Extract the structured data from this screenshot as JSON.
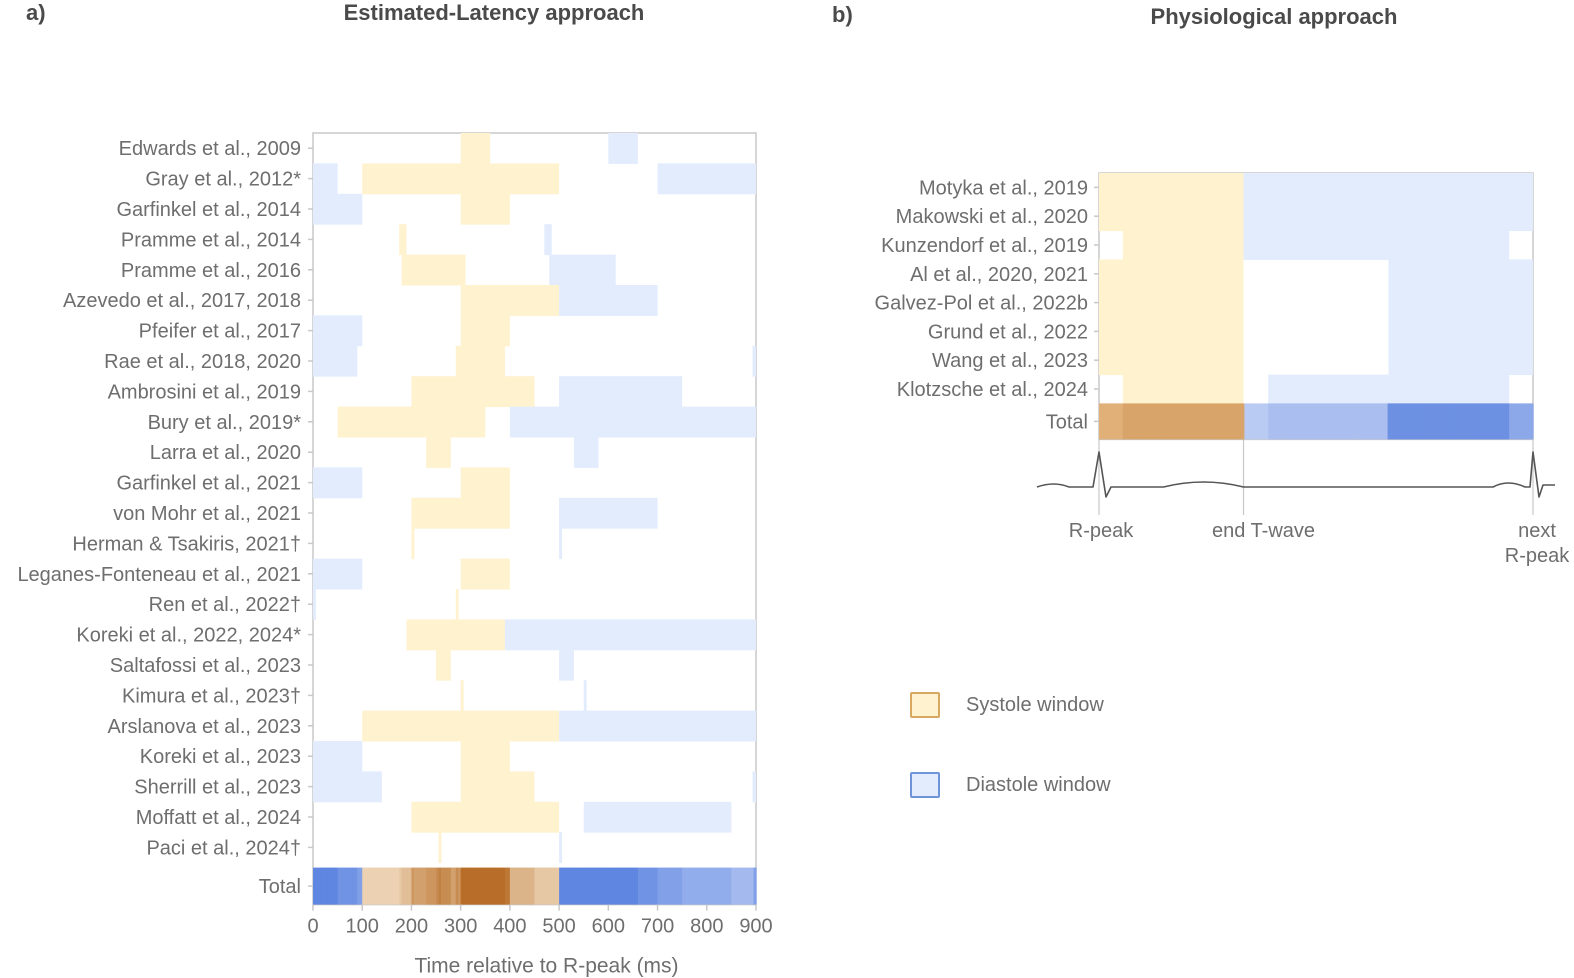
{
  "panels": {
    "a": {
      "letter": "a)",
      "title": "Estimated-Latency approach"
    },
    "b": {
      "letter": "b)",
      "title": "Physiological approach"
    }
  },
  "colors": {
    "systole": "#fff2cf",
    "diastole": "#e3ecfd",
    "systole_border": "#d9a860",
    "diastole_border": "#6f94d8",
    "axis": "#c8c8c8",
    "text": "#6e6e6e"
  },
  "legend": {
    "items": [
      {
        "label": "Systole window",
        "kind": "systole"
      },
      {
        "label": "Diastole window",
        "kind": "diastole"
      }
    ]
  },
  "chart_data": [
    {
      "type": "heatmap",
      "title": "Estimated-Latency approach",
      "xlabel": "Time relative to R-peak (ms)",
      "ylabel": "",
      "xlim": [
        0,
        900
      ],
      "xticks": [
        0,
        100,
        200,
        300,
        400,
        500,
        600,
        700,
        800,
        900
      ],
      "grid": false,
      "rows": [
        {
          "label": "Edwards et al., 2009",
          "systole": [
            [
              300,
              360
            ]
          ],
          "diastole": [
            [
              600,
              660
            ]
          ]
        },
        {
          "label": "Gray et al., 2012*",
          "systole": [
            [
              100,
              500
            ]
          ],
          "diastole": [
            [
              0,
              50
            ],
            [
              700,
              900
            ]
          ]
        },
        {
          "label": "Garfinkel et al., 2014",
          "systole": [
            [
              300,
              400
            ]
          ],
          "diastole": [
            [
              0,
              100
            ]
          ]
        },
        {
          "label": "Pramme et al., 2014",
          "systole": [
            [
              175,
              190
            ]
          ],
          "diastole": [
            [
              470,
              485
            ]
          ]
        },
        {
          "label": "Pramme et al., 2016",
          "systole": [
            [
              180,
              310
            ]
          ],
          "diastole": [
            [
              480,
              615
            ]
          ]
        },
        {
          "label": "Azevedo et al., 2017, 2018",
          "systole": [
            [
              300,
              500
            ]
          ],
          "diastole": [
            [
              500,
              700
            ]
          ]
        },
        {
          "label": "Pfeifer et al., 2017",
          "systole": [
            [
              300,
              400
            ]
          ],
          "diastole": [
            [
              0,
              100
            ]
          ]
        },
        {
          "label": "Rae et al., 2018, 2020",
          "systole": [
            [
              290,
              390
            ]
          ],
          "diastole": [
            [
              0,
              90
            ],
            [
              893,
              900
            ]
          ]
        },
        {
          "label": "Ambrosini et al., 2019",
          "systole": [
            [
              200,
              450
            ]
          ],
          "diastole": [
            [
              500,
              750
            ]
          ]
        },
        {
          "label": "Bury et al., 2019*",
          "systole": [
            [
              50,
              350
            ]
          ],
          "diastole": [
            [
              400,
              900
            ]
          ]
        },
        {
          "label": "Larra et al., 2020",
          "systole": [
            [
              230,
              280
            ]
          ],
          "diastole": [
            [
              530,
              580
            ]
          ]
        },
        {
          "label": "Garfinkel et al., 2021",
          "systole": [
            [
              300,
              400
            ]
          ],
          "diastole": [
            [
              0,
              100
            ]
          ]
        },
        {
          "label": "von Mohr et al., 2021",
          "systole": [
            [
              200,
              400
            ]
          ],
          "diastole": [
            [
              500,
              700
            ]
          ]
        },
        {
          "label": "Herman & Tsakiris, 2021†",
          "systole": [
            [
              200,
              206
            ]
          ],
          "diastole": [
            [
              500,
              506
            ]
          ]
        },
        {
          "label": "Leganes-Fonteneau et al., 2021",
          "systole": [
            [
              300,
              400
            ]
          ],
          "diastole": [
            [
              0,
              100
            ]
          ]
        },
        {
          "label": "Ren et al., 2022†",
          "systole": [
            [
              290,
              296
            ]
          ],
          "diastole": [
            [
              0,
              6
            ]
          ]
        },
        {
          "label": "Koreki et al., 2022, 2024*",
          "systole": [
            [
              190,
              390
            ]
          ],
          "diastole": [
            [
              390,
              900
            ]
          ]
        },
        {
          "label": "Saltafossi et al., 2023",
          "systole": [
            [
              250,
              280
            ]
          ],
          "diastole": [
            [
              500,
              530
            ]
          ]
        },
        {
          "label": "Kimura et al., 2023†",
          "systole": [
            [
              300,
              306
            ]
          ],
          "diastole": [
            [
              550,
              556
            ]
          ]
        },
        {
          "label": "Arslanova et al., 2023",
          "systole": [
            [
              100,
              500
            ]
          ],
          "diastole": [
            [
              500,
              900
            ]
          ]
        },
        {
          "label": "Koreki et al., 2023",
          "systole": [
            [
              300,
              400
            ]
          ],
          "diastole": [
            [
              0,
              100
            ]
          ]
        },
        {
          "label": "Sherrill et al., 2023",
          "systole": [
            [
              300,
              450
            ]
          ],
          "diastole": [
            [
              0,
              140
            ],
            [
              893,
              900
            ]
          ]
        },
        {
          "label": "Moffatt et al., 2024",
          "systole": [
            [
              200,
              500
            ]
          ],
          "diastole": [
            [
              550,
              850
            ]
          ]
        },
        {
          "label": "Paci et al., 2024†",
          "systole": [
            [
              255,
              261
            ]
          ],
          "diastole": [
            [
              500,
              506
            ]
          ]
        }
      ],
      "total_label": "Total"
    },
    {
      "type": "heatmap",
      "title": "Physiological approach",
      "xlabel": "",
      "x_landmarks": [
        "R-peak",
        "end T-wave",
        "next R-peak"
      ],
      "xlim_fraction_of_cycle": [
        0,
        1
      ],
      "grid": false,
      "rows": [
        {
          "label": "Motyka et al., 2019",
          "systole": [
            [
              0,
              0.333
            ]
          ],
          "diastole": [
            [
              0.333,
              1
            ]
          ]
        },
        {
          "label": "Makowski et al., 2020",
          "systole": [
            [
              0,
              0.333
            ]
          ],
          "diastole": [
            [
              0.333,
              1
            ]
          ]
        },
        {
          "label": "Kunzendorf et al., 2019",
          "systole": [
            [
              0.055,
              0.333
            ]
          ],
          "diastole": [
            [
              0.333,
              0.945
            ]
          ]
        },
        {
          "label": "Al et al., 2020, 2021",
          "systole": [
            [
              0,
              0.333
            ]
          ],
          "diastole": [
            [
              0.667,
              1
            ]
          ]
        },
        {
          "label": "Galvez-Pol et al., 2022b",
          "systole": [
            [
              0,
              0.333
            ]
          ],
          "diastole": [
            [
              0.667,
              1
            ]
          ]
        },
        {
          "label": "Grund et al., 2022",
          "systole": [
            [
              0,
              0.333
            ]
          ],
          "diastole": [
            [
              0.667,
              1
            ]
          ]
        },
        {
          "label": "Wang et al., 2023",
          "systole": [
            [
              0,
              0.333
            ]
          ],
          "diastole": [
            [
              0.667,
              1
            ]
          ]
        },
        {
          "label": "Klotzsche et al., 2024",
          "systole": [
            [
              0.055,
              0.333
            ]
          ],
          "diastole": [
            [
              0.39,
              0.945
            ]
          ]
        }
      ],
      "total_label": "Total"
    }
  ]
}
